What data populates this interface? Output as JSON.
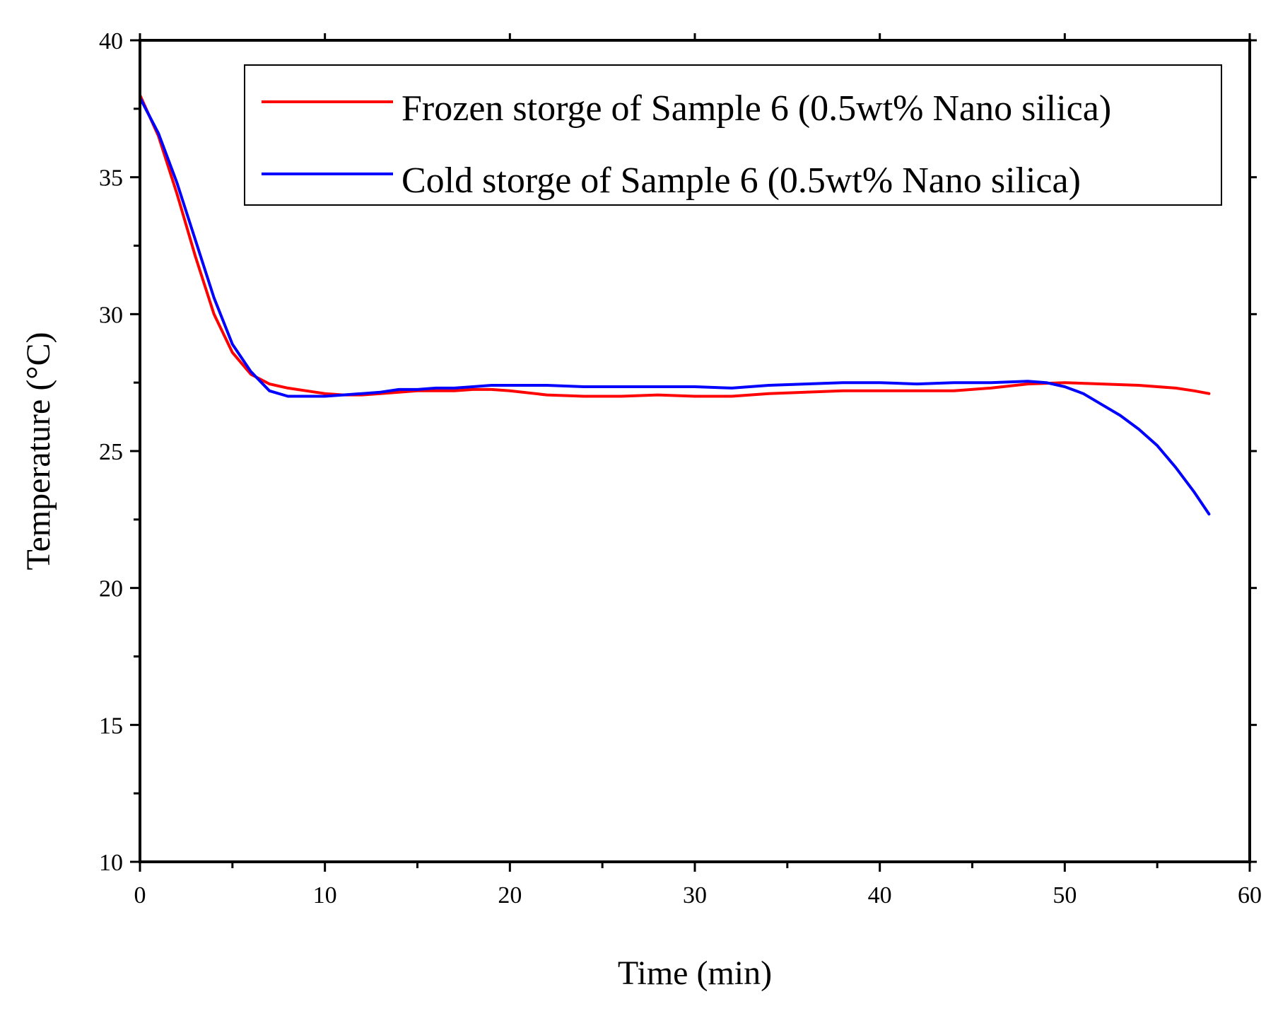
{
  "chart_data": {
    "type": "line",
    "title": "",
    "xlabel": "Time (min)",
    "ylabel": "Temperature (°C)",
    "xlim": [
      0,
      60
    ],
    "ylim": [
      10,
      40
    ],
    "x_major_ticks": [
      0,
      10,
      20,
      30,
      40,
      50,
      60
    ],
    "x_minor_ticks": [
      5,
      15,
      25,
      35,
      45,
      55
    ],
    "y_major_ticks": [
      10,
      15,
      20,
      25,
      30,
      35,
      40
    ],
    "y_minor_ticks": [
      12.5,
      17.5,
      22.5,
      27.5,
      32.5,
      37.5
    ],
    "grid": false,
    "legend_position": "top-right",
    "series": [
      {
        "name": "Frozen storge of Sample 6 (0.5wt% Nano silica)",
        "color": "#ff0000",
        "points": [
          [
            0,
            38.0
          ],
          [
            1,
            36.5
          ],
          [
            2,
            34.4
          ],
          [
            3,
            32.1
          ],
          [
            4,
            30.0
          ],
          [
            5,
            28.6
          ],
          [
            6,
            27.8
          ],
          [
            7,
            27.45
          ],
          [
            8,
            27.3
          ],
          [
            9,
            27.2
          ],
          [
            10,
            27.1
          ],
          [
            11,
            27.05
          ],
          [
            12,
            27.05
          ],
          [
            13,
            27.1
          ],
          [
            14,
            27.15
          ],
          [
            15,
            27.2
          ],
          [
            16,
            27.2
          ],
          [
            17,
            27.2
          ],
          [
            18,
            27.25
          ],
          [
            19,
            27.25
          ],
          [
            20,
            27.2
          ],
          [
            22,
            27.05
          ],
          [
            24,
            27.0
          ],
          [
            26,
            27.0
          ],
          [
            28,
            27.05
          ],
          [
            30,
            27.0
          ],
          [
            32,
            27.0
          ],
          [
            34,
            27.1
          ],
          [
            36,
            27.15
          ],
          [
            38,
            27.2
          ],
          [
            40,
            27.2
          ],
          [
            42,
            27.2
          ],
          [
            44,
            27.2
          ],
          [
            46,
            27.3
          ],
          [
            48,
            27.45
          ],
          [
            50,
            27.5
          ],
          [
            52,
            27.45
          ],
          [
            54,
            27.4
          ],
          [
            56,
            27.3
          ],
          [
            57,
            27.2
          ],
          [
            57.8,
            27.1
          ]
        ]
      },
      {
        "name": "Cold storge of Sample 6 (0.5wt% Nano silica)",
        "color": "#0000ff",
        "points": [
          [
            0,
            37.9
          ],
          [
            1,
            36.6
          ],
          [
            2,
            34.8
          ],
          [
            3,
            32.7
          ],
          [
            4,
            30.6
          ],
          [
            5,
            28.9
          ],
          [
            6,
            27.9
          ],
          [
            7,
            27.2
          ],
          [
            8,
            27.0
          ],
          [
            9,
            27.0
          ],
          [
            10,
            27.0
          ],
          [
            11,
            27.05
          ],
          [
            12,
            27.1
          ],
          [
            13,
            27.15
          ],
          [
            14,
            27.25
          ],
          [
            15,
            27.25
          ],
          [
            16,
            27.3
          ],
          [
            17,
            27.3
          ],
          [
            18,
            27.35
          ],
          [
            19,
            27.4
          ],
          [
            20,
            27.4
          ],
          [
            22,
            27.4
          ],
          [
            24,
            27.35
          ],
          [
            26,
            27.35
          ],
          [
            28,
            27.35
          ],
          [
            30,
            27.35
          ],
          [
            32,
            27.3
          ],
          [
            34,
            27.4
          ],
          [
            36,
            27.45
          ],
          [
            38,
            27.5
          ],
          [
            40,
            27.5
          ],
          [
            42,
            27.45
          ],
          [
            44,
            27.5
          ],
          [
            46,
            27.5
          ],
          [
            48,
            27.55
          ],
          [
            49,
            27.5
          ],
          [
            50,
            27.35
          ],
          [
            51,
            27.1
          ],
          [
            52,
            26.7
          ],
          [
            53,
            26.3
          ],
          [
            54,
            25.8
          ],
          [
            55,
            25.2
          ],
          [
            56,
            24.4
          ],
          [
            57,
            23.5
          ],
          [
            57.8,
            22.7
          ]
        ]
      }
    ]
  }
}
